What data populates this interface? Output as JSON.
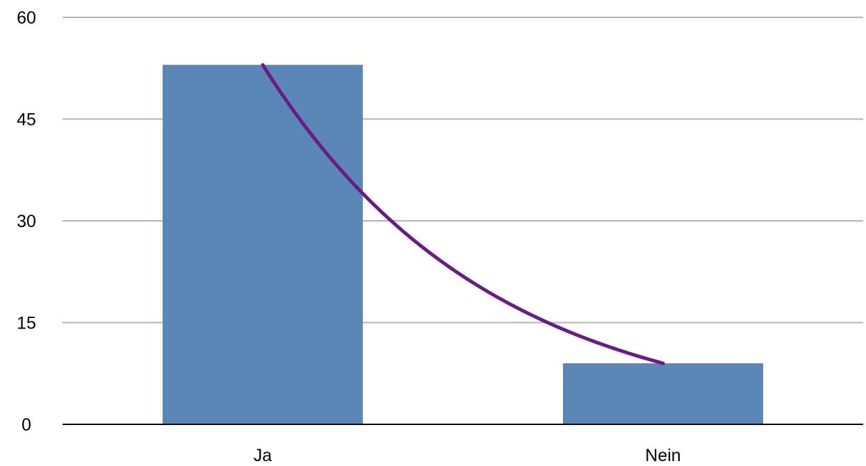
{
  "chart_data": {
    "type": "bar",
    "title": "",
    "xlabel": "",
    "ylabel": "",
    "categories": [
      "Ja",
      "Nein"
    ],
    "series": [
      {
        "values": [
          53,
          9
        ]
      }
    ],
    "trendline": {
      "type": "exponential",
      "values": [
        53,
        9
      ],
      "color": "#6a1b86"
    },
    "ylim": [
      0,
      60
    ],
    "yticks": [
      0,
      15,
      30,
      45,
      60
    ],
    "grid": true,
    "legend": "none",
    "bar_color": "#5b87b8",
    "grid_color": "#b3b3b3",
    "axis_color": "#000000"
  }
}
